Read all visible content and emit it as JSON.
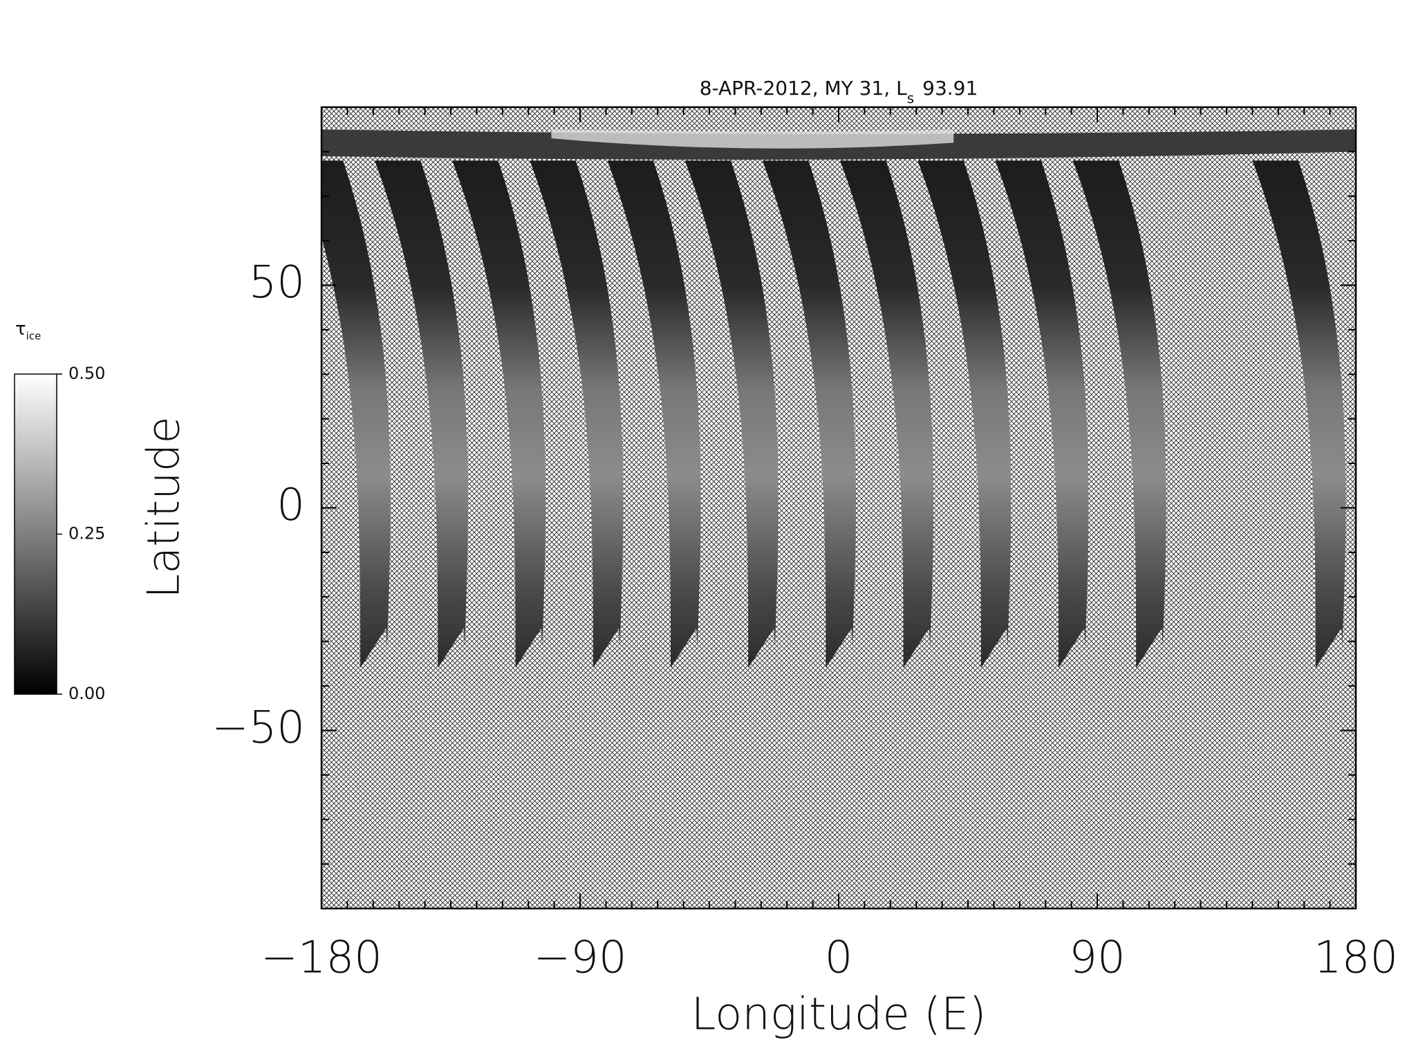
{
  "chart_data": {
    "type": "map",
    "title": {
      "text": "8-APR-2012, MY 31,  L",
      "subscript": "s",
      "suffix": "93.91"
    },
    "xlabel": "Longitude (E)",
    "ylabel": "Latitude",
    "xlim": [
      -180,
      180
    ],
    "ylim": [
      -90,
      90
    ],
    "xticks": [
      {
        "value": -180,
        "label": "−180"
      },
      {
        "value": -90,
        "label": "−90"
      },
      0,
      90,
      180
    ],
    "yticks": [
      {
        "value": -50,
        "label": "−50"
      },
      0,
      50
    ],
    "xminor_step": 9,
    "yminor_step": 10,
    "colorbar": {
      "label": "τ",
      "label_subscript": "ice",
      "lim": [
        0,
        0.5
      ],
      "ticks": [
        {
          "value": 0,
          "label": "0.00"
        },
        {
          "value": 0.25,
          "label": "0.25"
        },
        {
          "value": 0.5,
          "label": "0.50"
        }
      ]
    }
  }
}
